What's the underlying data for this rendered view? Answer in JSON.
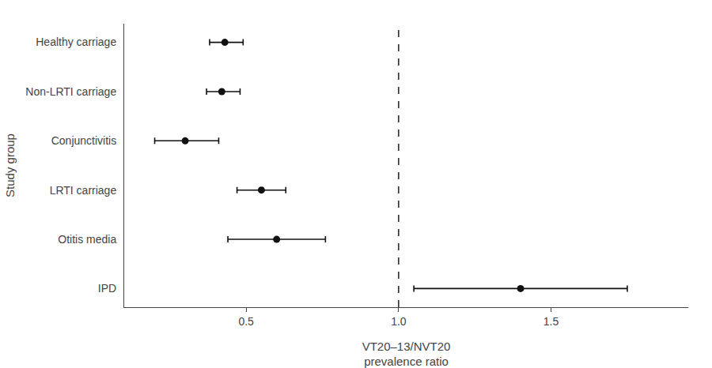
{
  "chart_data": {
    "type": "forest",
    "orientation": "horizontal",
    "categories": [
      "Healthy carriage",
      "Non-LRTI carriage",
      "Conjunctivitis",
      "LRTI carriage",
      "Otitis media",
      "IPD"
    ],
    "values": [
      0.43,
      0.42,
      0.3,
      0.55,
      0.6,
      1.4
    ],
    "ci_low": [
      0.38,
      0.37,
      0.2,
      0.47,
      0.44,
      1.05
    ],
    "ci_high": [
      0.49,
      0.48,
      0.41,
      0.63,
      0.76,
      1.75
    ],
    "color": "#111111",
    "marker": "circle",
    "xlabel": "VT20–13/NVT20\nprevalence ratio",
    "ylabel": "Study group",
    "xlim": [
      0.1,
      1.95
    ],
    "xticks": [
      0.5,
      {
        "value": 1.0,
        "label": "1.0"
      },
      1.5
    ],
    "vline": {
      "x": 1.0,
      "line_style": "dashed",
      "color": "#111111"
    },
    "grid": false
  }
}
